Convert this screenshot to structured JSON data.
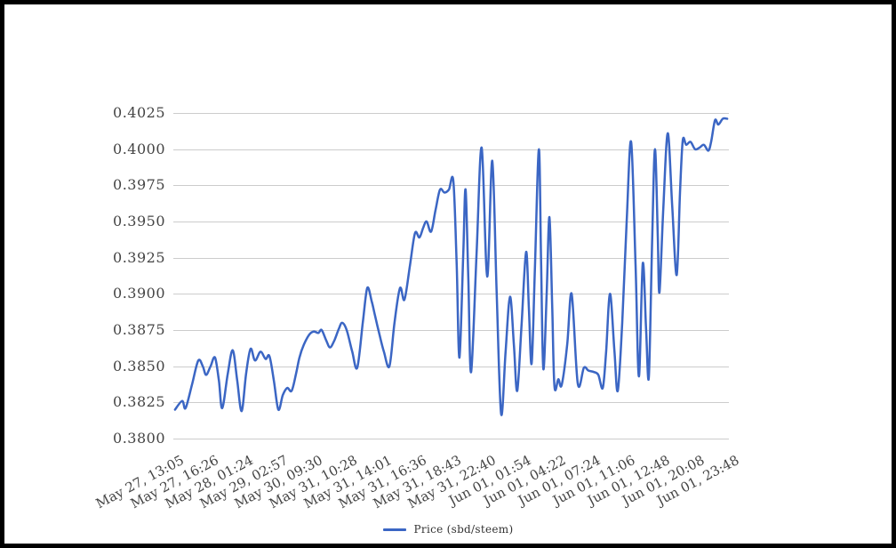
{
  "chart_data": {
    "type": "line",
    "title": "",
    "legend_position": "bottom",
    "grid": "horizontal-only",
    "colors": {
      "line": "#3B66C4",
      "grid": "#CCCCCC",
      "axis_text": "#444444",
      "legend_text": "#333333",
      "frame_border": "#000000",
      "background": "#FFFFFF"
    },
    "y_axis": {
      "min": 0.38,
      "max": 0.4025,
      "ticks": [
        "0.4025",
        "0.4000",
        "0.3975",
        "0.3950",
        "0.3925",
        "0.3900",
        "0.3875",
        "0.3850",
        "0.3825",
        "0.3800"
      ]
    },
    "x_axis": {
      "ticks": [
        "May 27, 13:05",
        "May 27, 16:26",
        "May 28, 01:24",
        "May 29, 02:57",
        "May 30, 09:30",
        "May 31, 10:28",
        "May 31, 14:01",
        "May 31, 16:36",
        "May 31, 18:43",
        "May 31, 22:40",
        "Jun 01, 01:54",
        "Jun 01, 04:22",
        "Jun 01, 07:24",
        "Jun 01, 11:06",
        "Jun 01, 12:48",
        "Jun 01, 20:08",
        "Jun 01, 23:48"
      ]
    },
    "series": [
      {
        "name": "Price (sbd/steem)",
        "points": [
          [
            0.003,
            0.382
          ],
          [
            0.016,
            0.3826
          ],
          [
            0.022,
            0.3821
          ],
          [
            0.034,
            0.3838
          ],
          [
            0.045,
            0.3854
          ],
          [
            0.053,
            0.385
          ],
          [
            0.059,
            0.3844
          ],
          [
            0.067,
            0.385
          ],
          [
            0.075,
            0.3856
          ],
          [
            0.082,
            0.384
          ],
          [
            0.088,
            0.3821
          ],
          [
            0.098,
            0.3845
          ],
          [
            0.107,
            0.3861
          ],
          [
            0.115,
            0.384
          ],
          [
            0.123,
            0.3819
          ],
          [
            0.131,
            0.3845
          ],
          [
            0.139,
            0.3862
          ],
          [
            0.147,
            0.3854
          ],
          [
            0.157,
            0.386
          ],
          [
            0.166,
            0.3855
          ],
          [
            0.173,
            0.3857
          ],
          [
            0.181,
            0.384
          ],
          [
            0.189,
            0.382
          ],
          [
            0.197,
            0.383
          ],
          [
            0.205,
            0.3835
          ],
          [
            0.213,
            0.3833
          ],
          [
            0.221,
            0.3845
          ],
          [
            0.227,
            0.3856
          ],
          [
            0.235,
            0.3865
          ],
          [
            0.245,
            0.3872
          ],
          [
            0.253,
            0.3874
          ],
          [
            0.261,
            0.3873
          ],
          [
            0.267,
            0.3875
          ],
          [
            0.275,
            0.3868
          ],
          [
            0.282,
            0.3863
          ],
          [
            0.29,
            0.3868
          ],
          [
            0.298,
            0.3876
          ],
          [
            0.304,
            0.388
          ],
          [
            0.312,
            0.3875
          ],
          [
            0.322,
            0.386
          ],
          [
            0.331,
            0.3849
          ],
          [
            0.341,
            0.388
          ],
          [
            0.349,
            0.3904
          ],
          [
            0.357,
            0.3895
          ],
          [
            0.363,
            0.3885
          ],
          [
            0.371,
            0.3872
          ],
          [
            0.379,
            0.386
          ],
          [
            0.389,
            0.385
          ],
          [
            0.398,
            0.388
          ],
          [
            0.408,
            0.3904
          ],
          [
            0.416,
            0.3896
          ],
          [
            0.426,
            0.392
          ],
          [
            0.435,
            0.3942
          ],
          [
            0.443,
            0.3939
          ],
          [
            0.45,
            0.3946
          ],
          [
            0.456,
            0.395
          ],
          [
            0.464,
            0.3943
          ],
          [
            0.472,
            0.3958
          ],
          [
            0.48,
            0.3972
          ],
          [
            0.488,
            0.397
          ],
          [
            0.496,
            0.3972
          ],
          [
            0.504,
            0.3978
          ],
          [
            0.51,
            0.392
          ],
          [
            0.515,
            0.3856
          ],
          [
            0.522,
            0.393
          ],
          [
            0.526,
            0.3972
          ],
          [
            0.531,
            0.391
          ],
          [
            0.536,
            0.3846
          ],
          [
            0.546,
            0.393
          ],
          [
            0.555,
            0.4001
          ],
          [
            0.565,
            0.3912
          ],
          [
            0.574,
            0.3992
          ],
          [
            0.582,
            0.39
          ],
          [
            0.59,
            0.3817
          ],
          [
            0.598,
            0.386
          ],
          [
            0.606,
            0.3898
          ],
          [
            0.613,
            0.3865
          ],
          [
            0.619,
            0.3833
          ],
          [
            0.627,
            0.388
          ],
          [
            0.635,
            0.3929
          ],
          [
            0.64,
            0.389
          ],
          [
            0.645,
            0.3852
          ],
          [
            0.651,
            0.392
          ],
          [
            0.658,
            0.4
          ],
          [
            0.662,
            0.392
          ],
          [
            0.666,
            0.3848
          ],
          [
            0.672,
            0.39
          ],
          [
            0.677,
            0.3953
          ],
          [
            0.682,
            0.389
          ],
          [
            0.686,
            0.3836
          ],
          [
            0.693,
            0.3841
          ],
          [
            0.699,
            0.3837
          ],
          [
            0.709,
            0.3865
          ],
          [
            0.717,
            0.39
          ],
          [
            0.728,
            0.3838
          ],
          [
            0.739,
            0.3849
          ],
          [
            0.747,
            0.3847
          ],
          [
            0.757,
            0.3846
          ],
          [
            0.765,
            0.3844
          ],
          [
            0.773,
            0.3835
          ],
          [
            0.779,
            0.386
          ],
          [
            0.786,
            0.39
          ],
          [
            0.794,
            0.386
          ],
          [
            0.8,
            0.3833
          ],
          [
            0.808,
            0.388
          ],
          [
            0.816,
            0.395
          ],
          [
            0.824,
            0.4005
          ],
          [
            0.832,
            0.392
          ],
          [
            0.838,
            0.3843
          ],
          [
            0.845,
            0.3921
          ],
          [
            0.851,
            0.3875
          ],
          [
            0.856,
            0.3843
          ],
          [
            0.862,
            0.394
          ],
          [
            0.867,
            0.4
          ],
          [
            0.872,
            0.394
          ],
          [
            0.875,
            0.3901
          ],
          [
            0.882,
            0.396
          ],
          [
            0.89,
            0.4011
          ],
          [
            0.898,
            0.396
          ],
          [
            0.906,
            0.3913
          ],
          [
            0.912,
            0.397
          ],
          [
            0.917,
            0.4006
          ],
          [
            0.923,
            0.4003
          ],
          [
            0.931,
            0.4005
          ],
          [
            0.939,
            0.4
          ],
          [
            0.947,
            0.4001
          ],
          [
            0.955,
            0.4003
          ],
          [
            0.963,
            0.3999
          ],
          [
            0.968,
            0.4005
          ],
          [
            0.975,
            0.402
          ],
          [
            0.981,
            0.4017
          ],
          [
            0.989,
            0.4021
          ],
          [
            0.997,
            0.4021
          ]
        ]
      }
    ]
  }
}
